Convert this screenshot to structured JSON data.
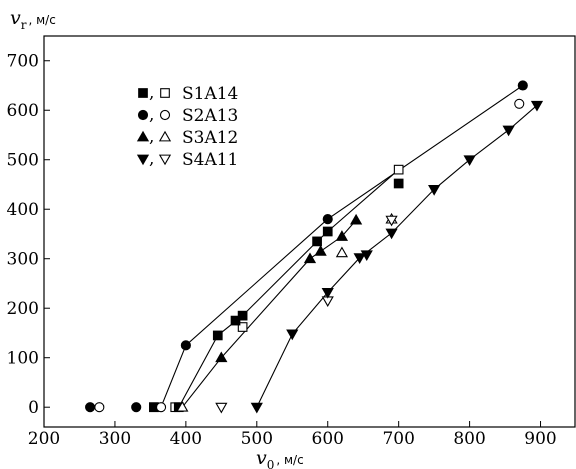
{
  "chart_data": {
    "type": "scatter",
    "xlabel": {
      "symbol": "v",
      "subscript": "0",
      "unit": ", м/с"
    },
    "ylabel": {
      "symbol": "v",
      "subscript": "r",
      "unit": ", м/с"
    },
    "xlim": [
      200,
      950
    ],
    "ylim": [
      -40,
      750
    ],
    "xticks": [
      200,
      300,
      400,
      500,
      600,
      700,
      800,
      900
    ],
    "yticks": [
      0,
      100,
      200,
      300,
      400,
      500,
      600,
      700
    ],
    "grid": false,
    "legend_position": "top-left",
    "series": [
      {
        "name": "S1A14",
        "legend_symbols": "■,□",
        "marker": "square",
        "filled": [
          [
            355,
            0
          ],
          [
            390,
            0
          ],
          [
            445,
            145
          ],
          [
            470,
            175
          ],
          [
            480,
            185
          ],
          [
            585,
            335
          ],
          [
            600,
            355
          ],
          [
            700,
            452
          ]
        ],
        "open": [
          [
            355,
            0
          ],
          [
            385,
            0
          ],
          [
            480,
            162
          ],
          [
            700,
            480
          ]
        ],
        "line": [
          [
            390,
            0
          ],
          [
            445,
            145
          ],
          [
            480,
            185
          ],
          [
            585,
            335
          ],
          [
            600,
            355
          ],
          [
            700,
            480
          ]
        ]
      },
      {
        "name": "S2A13",
        "legend_symbols": "●,○",
        "marker": "circle",
        "filled": [
          [
            265,
            0
          ],
          [
            330,
            0
          ],
          [
            400,
            125
          ],
          [
            600,
            380
          ],
          [
            875,
            650
          ]
        ],
        "open": [
          [
            278,
            0
          ],
          [
            365,
            0
          ],
          [
            870,
            613
          ]
        ],
        "line": [
          [
            365,
            0
          ],
          [
            400,
            125
          ],
          [
            600,
            380
          ],
          [
            875,
            650
          ]
        ]
      },
      {
        "name": "S3A12",
        "legend_symbols": "▲,△",
        "marker": "triangle-up",
        "filled": [
          [
            450,
            100
          ],
          [
            575,
            300
          ],
          [
            590,
            315
          ],
          [
            620,
            345
          ],
          [
            640,
            378
          ]
        ],
        "open": [
          [
            395,
            0
          ],
          [
            620,
            312
          ],
          [
            690,
            380
          ]
        ],
        "line": [
          [
            395,
            0
          ],
          [
            450,
            100
          ],
          [
            575,
            300
          ],
          [
            590,
            315
          ],
          [
            620,
            345
          ],
          [
            640,
            378
          ]
        ]
      },
      {
        "name": "S4A11",
        "legend_symbols": "▼,▽",
        "marker": "triangle-down",
        "filled": [
          [
            500,
            0
          ],
          [
            550,
            148
          ],
          [
            600,
            232
          ],
          [
            645,
            302
          ],
          [
            655,
            308
          ],
          [
            690,
            352
          ],
          [
            750,
            440
          ],
          [
            800,
            500
          ],
          [
            855,
            560
          ],
          [
            895,
            610
          ]
        ],
        "open": [
          [
            450,
            0
          ],
          [
            600,
            215
          ],
          [
            690,
            378
          ]
        ],
        "line": [
          [
            500,
            0
          ],
          [
            550,
            148
          ],
          [
            600,
            232
          ],
          [
            645,
            302
          ],
          [
            690,
            352
          ],
          [
            750,
            440
          ],
          [
            800,
            500
          ],
          [
            855,
            560
          ],
          [
            895,
            610
          ]
        ]
      }
    ]
  }
}
